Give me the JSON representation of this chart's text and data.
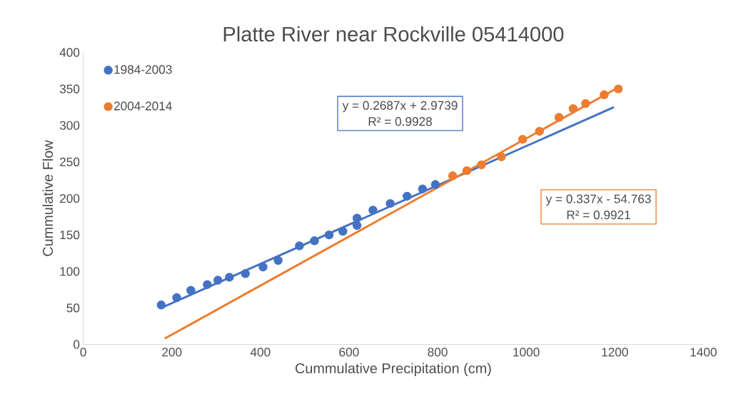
{
  "chart_data": {
    "type": "scatter",
    "title": "Platte River near Rockville 05414000",
    "xlabel": "Cummulative Precipitation (cm)",
    "ylabel": "Cummulative Flow",
    "xlim": [
      0,
      1400
    ],
    "xticks": [
      0,
      200,
      400,
      600,
      800,
      1000,
      1200,
      1400
    ],
    "ylim": [
      0,
      400
    ],
    "yticks": [
      0,
      50,
      100,
      150,
      200,
      250,
      300,
      350,
      400
    ],
    "grid": false,
    "legend": "top left",
    "marker": "circle",
    "series": [
      {
        "name": "1984-2003",
        "color": "#4472c4",
        "x": [
          176,
          211,
          243,
          280,
          304,
          330,
          366,
          406,
          440,
          488,
          522,
          555,
          586,
          618,
          618,
          654,
          693,
          731,
          766,
          795
        ],
        "values": [
          54,
          64,
          74,
          82,
          88,
          92,
          97,
          106,
          115,
          135,
          142,
          150,
          155,
          163,
          173,
          184,
          193,
          203,
          213,
          219
        ]
      },
      {
        "name": "2004-2014",
        "color": "#ed7d31",
        "x": [
          834,
          866,
          899,
          944,
          992,
          1030,
          1074,
          1106,
          1134,
          1176,
          1208
        ],
        "values": [
          231,
          238,
          246,
          257,
          281,
          292,
          311,
          323,
          330,
          342,
          350
        ]
      },
      {
        "type": "line",
        "color": "#4472c4",
        "marker": "none",
        "x": [
          176,
          1198
        ],
        "values": [
          50,
          325
        ]
      },
      {
        "type": "line",
        "color": "#ed7d31",
        "marker": "none",
        "x": [
          184,
          1208
        ],
        "values": [
          8,
          352
        ]
      }
    ],
    "annotations": [
      "y = 0.2687x + 2.9739",
      "R² = 0.9928",
      "y = 0.337x - 54.763",
      "R² = 0.9921"
    ]
  }
}
